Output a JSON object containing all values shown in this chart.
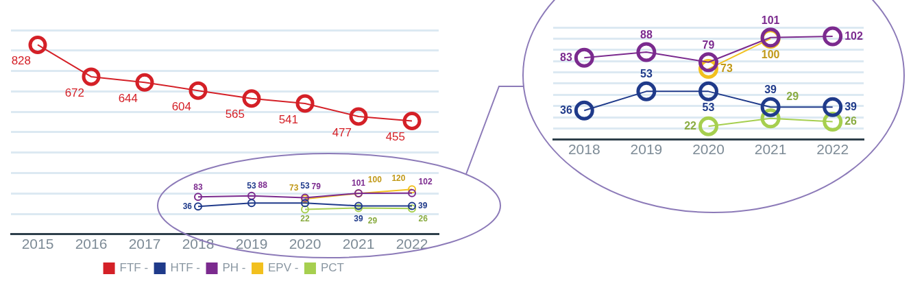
{
  "chart_data": [
    {
      "type": "line",
      "categories": [
        "2015",
        "2016",
        "2017",
        "2018",
        "2019",
        "2020",
        "2021",
        "2022"
      ],
      "series": [
        {
          "name": "FTF -",
          "color": "#d42027",
          "values": [
            828,
            672,
            644,
            604,
            565,
            541,
            477,
            455
          ]
        },
        {
          "name": "HTF -",
          "color": "#1f3a8a",
          "values": [
            null,
            null,
            null,
            36,
            53,
            53,
            39,
            39
          ]
        },
        {
          "name": "PH -",
          "color": "#7b2a8e",
          "values": [
            null,
            null,
            null,
            83,
            88,
            79,
            101,
            102
          ]
        },
        {
          "name": "EPV -",
          "color": "#f2c01e",
          "values": [
            null,
            null,
            null,
            null,
            null,
            73,
            100,
            120
          ]
        },
        {
          "name": "PCT",
          "color": "#a6cf4f",
          "values": [
            null,
            null,
            null,
            null,
            null,
            22,
            29,
            26
          ]
        }
      ],
      "data_labels": true,
      "grid": "y",
      "legend": "bottom",
      "marker": "circle",
      "tick_labels": "x"
    },
    {
      "type": "line",
      "categories": [
        "2018",
        "2019",
        "2020",
        "2021",
        "2022"
      ],
      "series": [
        {
          "color": "#1f3a8a",
          "values": [
            36,
            53,
            53,
            39,
            39
          ]
        },
        {
          "color": "#7b2a8e",
          "values": [
            83,
            88,
            79,
            101,
            102
          ]
        },
        {
          "color": "#f2c01e",
          "values": [
            null,
            null,
            73,
            100,
            null
          ]
        },
        {
          "color": "#a6cf4f",
          "values": [
            null,
            null,
            22,
            29,
            26
          ]
        }
      ],
      "data_labels": true,
      "grid": "y",
      "legend": false,
      "marker": "circle",
      "tick_labels": "x"
    }
  ]
}
